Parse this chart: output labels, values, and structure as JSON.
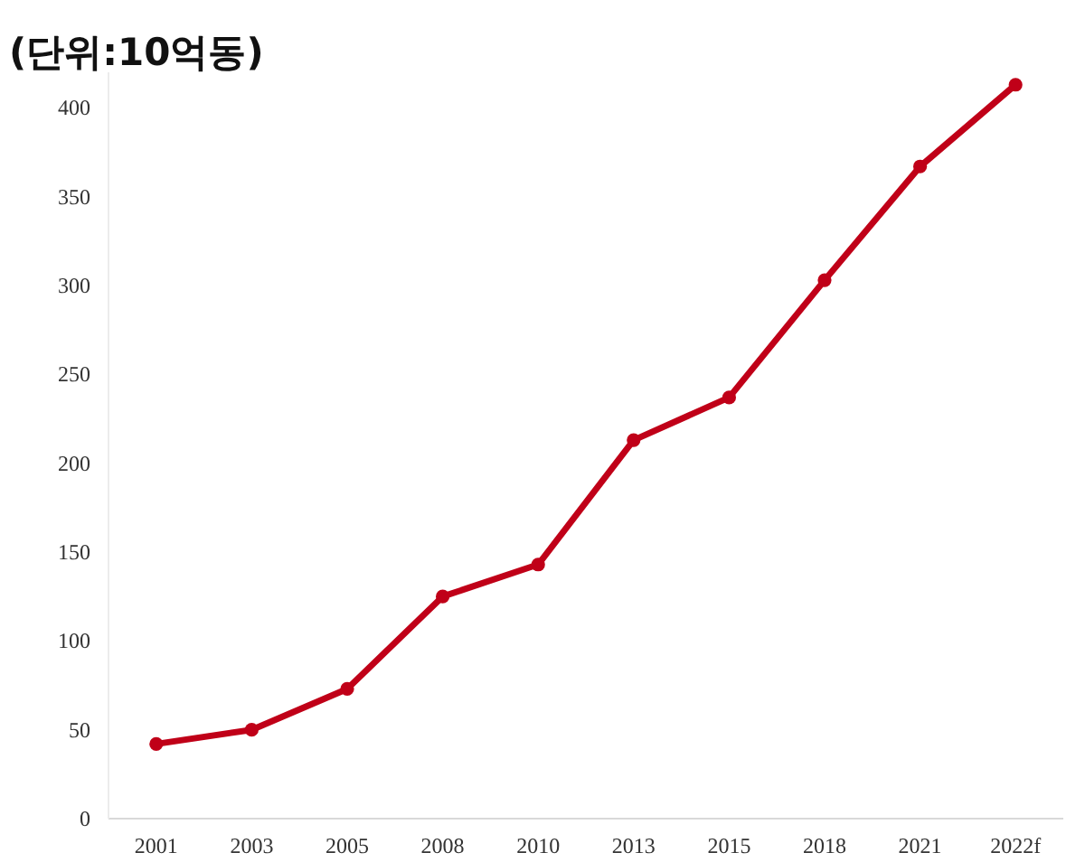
{
  "chart_data": {
    "type": "line",
    "title": "(단위:10억동)",
    "categories": [
      "2001",
      "2003",
      "2005",
      "2008",
      "2010",
      "2013",
      "2015",
      "2018",
      "2021",
      "2022f"
    ],
    "series": [
      {
        "color": "#c00018",
        "values": [
          42,
          50,
          73,
          125,
          143,
          213,
          237,
          303,
          367,
          413
        ]
      }
    ],
    "ylim": [
      0,
      420
    ],
    "yticks": [
      0,
      50,
      100,
      150,
      200,
      250,
      300,
      350,
      400
    ],
    "marker": "circle",
    "line_style": "solid",
    "grid": false
  }
}
